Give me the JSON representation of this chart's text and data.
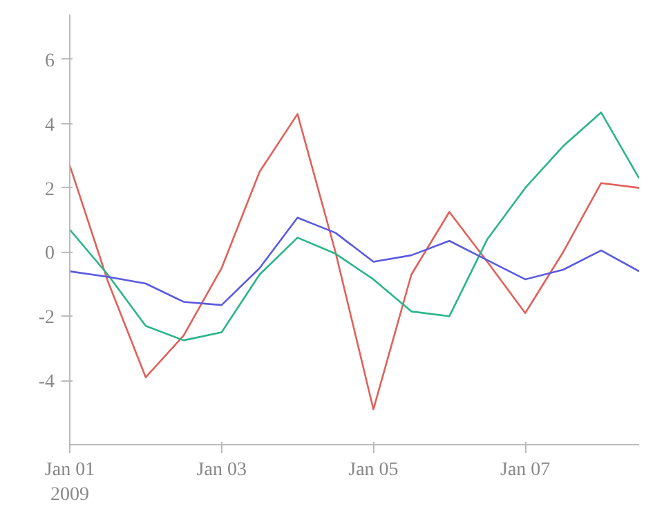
{
  "chart_data": {
    "type": "line",
    "x": [
      "2009-01-01T00:00",
      "2009-01-01T12:00",
      "2009-01-02T00:00",
      "2009-01-02T12:00",
      "2009-01-03T00:00",
      "2009-01-03T12:00",
      "2009-01-04T00:00",
      "2009-01-04T12:00",
      "2009-01-05T00:00",
      "2009-01-05T12:00",
      "2009-01-06T00:00",
      "2009-01-06T12:00",
      "2009-01-07T00:00",
      "2009-01-07T12:00",
      "2009-01-08T00:00",
      "2009-01-08T12:00"
    ],
    "series": [
      {
        "color": "#e0605a",
        "values": [
          2.7,
          -0.9,
          -3.9,
          -2.6,
          -0.5,
          2.5,
          4.3,
          0.0,
          -4.9,
          -0.7,
          1.25,
          -0.3,
          -1.9,
          0.0,
          2.15,
          2.0
        ]
      },
      {
        "color": "#2ab58a",
        "values": [
          0.7,
          -0.7,
          -2.3,
          -2.75,
          -2.5,
          -0.7,
          0.45,
          -0.05,
          -0.85,
          -1.85,
          -2.0,
          0.4,
          2.0,
          3.3,
          4.35,
          2.3
        ]
      },
      {
        "color": "#5a5ae0",
        "values": [
          -0.6,
          -0.77,
          -0.98,
          -1.55,
          -1.65,
          -0.5,
          1.07,
          0.6,
          -0.3,
          -0.1,
          0.35,
          -0.25,
          -0.85,
          -0.55,
          0.05,
          -0.6
        ]
      }
    ],
    "xlim": [
      "2009-01-01T00:00",
      "2009-01-08T12:00"
    ],
    "xticks": [
      {
        "value": "2009-01-01",
        "label": "Jan 01\n2009"
      },
      {
        "value": "2009-01-03",
        "label": "Jan 03"
      },
      {
        "value": "2009-01-05",
        "label": "Jan 05"
      },
      {
        "value": "2009-01-07",
        "label": "Jan 07"
      }
    ],
    "ylim": [
      -6,
      7.4
    ],
    "yticks": [
      -4,
      -2,
      0,
      2,
      4,
      6
    ],
    "grid": false,
    "marker": "none",
    "line_style": "solid"
  }
}
